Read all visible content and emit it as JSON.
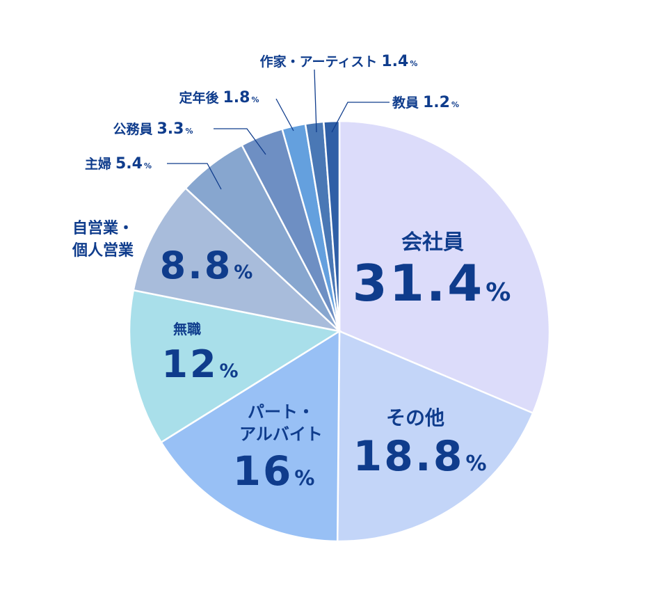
{
  "chart_data": {
    "type": "pie",
    "categories": [
      "会社員",
      "その他",
      "パート・\nアルバイト",
      "無職",
      "自営業・\n個人営業",
      "主婦",
      "公務員",
      "定年後",
      "作家・アーティスト",
      "教員"
    ],
    "values": [
      31.4,
      18.8,
      16,
      12,
      8.8,
      5.4,
      3.3,
      1.8,
      1.4,
      1.2
    ],
    "value_labels": [
      "31.4%",
      "18.8%",
      "16%",
      "12%",
      "8.8%",
      "5.4%",
      "3.3%",
      "1.8%",
      "1.4%",
      "1.2%"
    ],
    "colors": [
      "#dcdcfa",
      "#c3d5f8",
      "#98c0f5",
      "#a9dfea",
      "#a8bcdb",
      "#87a6cf",
      "#6e8fc3",
      "#64a0de",
      "#4a78b5",
      "#2f5fa6"
    ]
  }
}
